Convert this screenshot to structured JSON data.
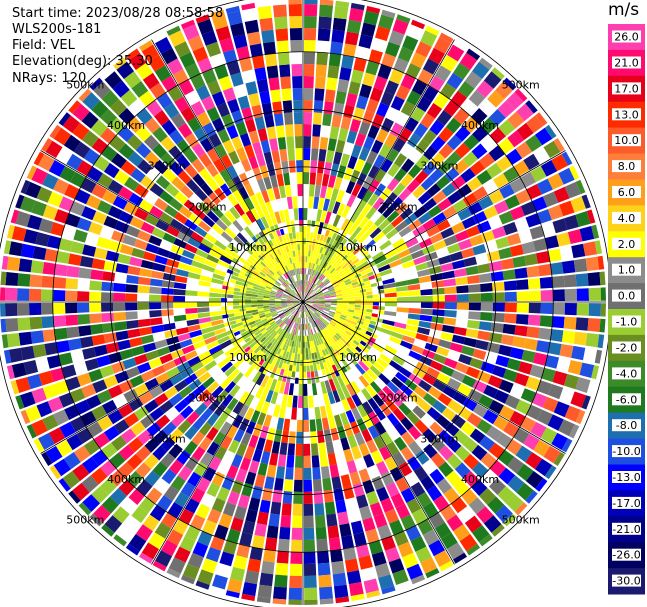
{
  "header": {
    "start_time": "Start time: 2023/08/28 08:58:58",
    "instrument": "WLS200s-181",
    "field": "Field: VEL",
    "elevation": "Elevation(deg): 35.30",
    "nrays": "NRays: 120"
  },
  "chart_data": {
    "type": "heatmap",
    "subtype": "radar-ppi",
    "title": "",
    "xlabel": "",
    "ylabel": "",
    "range_rings": [
      "100km",
      "200km",
      "300km",
      "400km",
      "500km"
    ],
    "ring_radii_km": [
      100,
      200,
      300,
      400,
      500
    ],
    "max_range_km": 500,
    "nrays": 120,
    "colorbar": {
      "unit": "m/s",
      "ticks": [
        "26.0",
        "21.0",
        "17.0",
        "13.0",
        "10.0",
        "8.0",
        "6.0",
        "4.0",
        "2.0",
        "1.0",
        "0.0",
        "-1.0",
        "-2.0",
        "-4.0",
        "-6.0",
        "-8.0",
        "-10.0",
        "-13.0",
        "-17.0",
        "-21.0",
        "-26.0",
        "-30.0"
      ],
      "colors": [
        "#ff3fb0",
        "#ff0a6e",
        "#e8001a",
        "#ff2b00",
        "#ff5a2a",
        "#ff7f3a",
        "#ff9f1a",
        "#ffd21a",
        "#ffff00",
        "#8c8c8c",
        "#707070",
        "#9acd32",
        "#6b8e23",
        "#3c8a28",
        "#1f7a1f",
        "#1e6fb0",
        "#1e4fe0",
        "#0000ff",
        "#0000b8",
        "#00008b",
        "#000060",
        "#1a1a70"
      ]
    },
    "near_field": {
      "inner_color": "#9acd32",
      "outer_color": "#ffff00",
      "approx_speed": "0 to 2 m/s"
    }
  }
}
